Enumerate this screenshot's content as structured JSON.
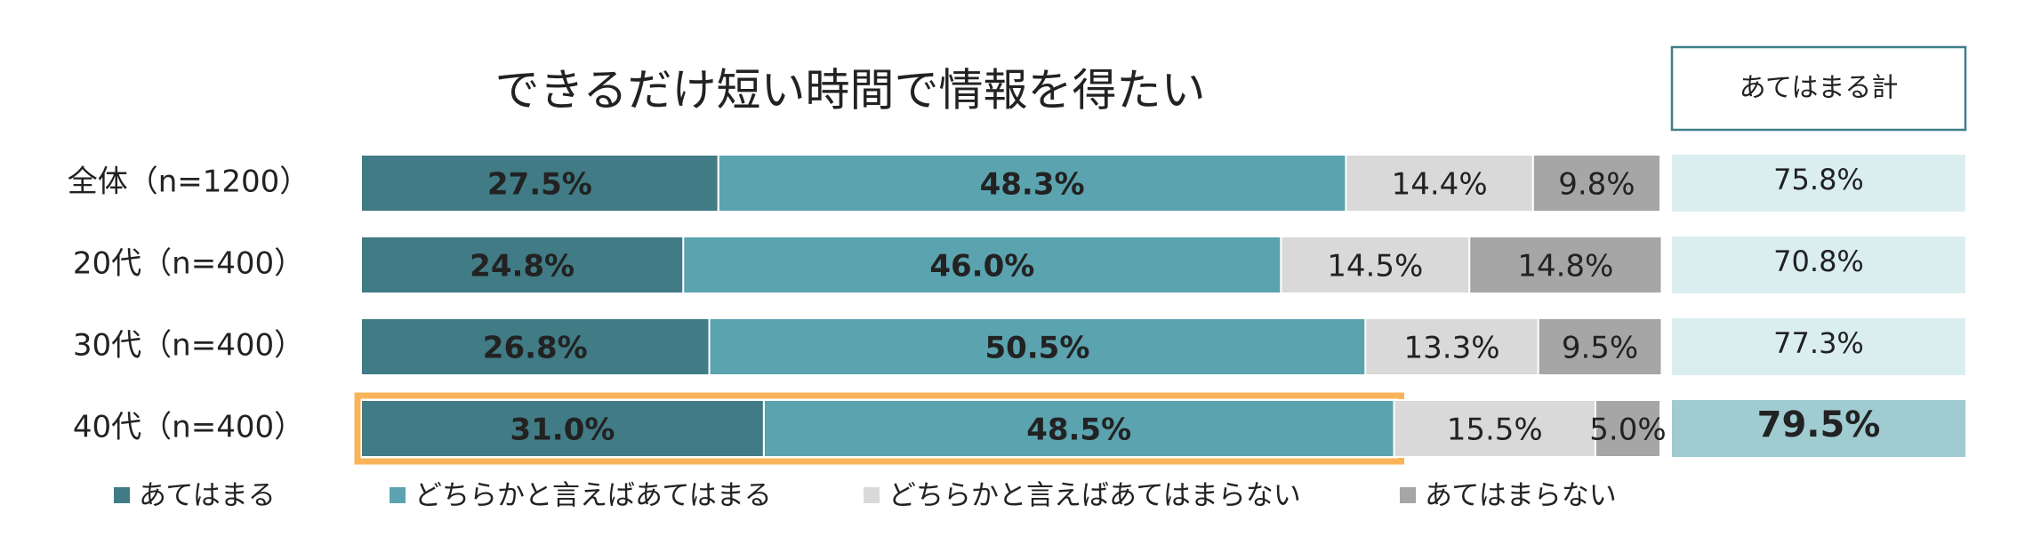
{
  "chart_data": {
    "type": "stacked-bar-horizontal",
    "title": "できるだけ短い時間で情報を得たい",
    "categories": [
      "全体（n=1200）",
      "20代（n=400）",
      "30代（n=400）",
      "40代（n=400）"
    ],
    "xlim": [
      0,
      100
    ],
    "series": [
      {
        "name": "あてはまる",
        "color": "#417b85",
        "values": [
          27.5,
          24.8,
          26.8,
          31.0
        ],
        "value_labels": [
          "27.5%",
          "24.8%",
          "26.8%",
          "31.0%"
        ]
      },
      {
        "name": "どちらかと言えばあてはまる",
        "color": "#5ba3af",
        "values": [
          48.3,
          46.0,
          50.5,
          48.5
        ],
        "value_labels": [
          "48.3%",
          "46.0%",
          "50.5%",
          "48.5%"
        ]
      },
      {
        "name": "どちらかと言えばあてはまらない",
        "color": "#d9d9d9",
        "values": [
          14.4,
          14.5,
          13.3,
          15.5
        ],
        "value_labels": [
          "14.4%",
          "14.5%",
          "13.3%",
          "15.5%"
        ]
      },
      {
        "name": "あてはまらない",
        "color": "#a6a6a6",
        "values": [
          9.8,
          14.8,
          9.5,
          5.0
        ],
        "value_labels": [
          "9.8%",
          "14.8%",
          "9.5%",
          "5.0%"
        ]
      }
    ],
    "total": {
      "title": "あてはまる計",
      "values": [
        75.8,
        70.8,
        77.3,
        79.5
      ],
      "value_labels": [
        "75.8%",
        "70.8%",
        "77.3%",
        "79.5%"
      ]
    },
    "legend": "bottom"
  }
}
